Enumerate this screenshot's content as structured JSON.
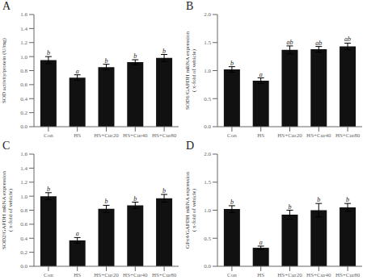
{
  "chart_data": [
    {
      "type": "bar",
      "title": "A",
      "ylabel": "SOD activity/protein (U/mg)",
      "categories": [
        "Con",
        "HS",
        "HS+Cur20",
        "HS+Cur40",
        "HS+Cur80"
      ],
      "values": [
        0.95,
        0.7,
        0.85,
        0.92,
        0.98
      ],
      "errors": [
        0.05,
        0.04,
        0.04,
        0.035,
        0.05
      ],
      "annotations": [
        "b",
        "a",
        "b",
        "b",
        "b"
      ],
      "color": "#111111",
      "ylim": [
        0.0,
        1.6
      ],
      "yticks": [
        {
          "value": 0.0,
          "label": "0.0"
        },
        0.2,
        0.4,
        0.6,
        0.8,
        {
          "value": 1.0,
          "label": "1.0"
        },
        1.2,
        1.4,
        1.6
      ],
      "grid": false
    },
    {
      "type": "bar",
      "title": "B",
      "ylabel": "SOD1/GAPDH mRNA expression\n( x-fold of vehicle)",
      "categories": [
        "Con",
        "HS",
        "HS+Cur20",
        "HS+Cur40",
        "HS+Cur80"
      ],
      "values": [
        1.02,
        0.82,
        1.37,
        1.38,
        1.43
      ],
      "errors": [
        0.05,
        0.05,
        0.07,
        0.05,
        0.06
      ],
      "annotations": [
        "b",
        "a",
        "ab",
        "ab",
        "ab"
      ],
      "color": "#111111",
      "ylim": [
        0.0,
        2.0
      ],
      "yticks": [
        {
          "value": 0.0,
          "label": "0.0"
        },
        0.5,
        {
          "value": 1.0,
          "label": "1.0"
        },
        1.5,
        {
          "value": 2.0,
          "label": "2.0"
        }
      ],
      "grid": false
    },
    {
      "type": "bar",
      "title": "C",
      "ylabel": "SOD2/GAPDH mRNA expression\n( x-fold of vehicle)",
      "categories": [
        "Con",
        "HS",
        "HS+Cur20",
        "HS+Cur40",
        "HS+Cur80"
      ],
      "values": [
        1.0,
        0.37,
        0.82,
        0.87,
        0.97
      ],
      "errors": [
        0.05,
        0.04,
        0.05,
        0.045,
        0.055
      ],
      "annotations": [
        "b",
        "a",
        "b",
        "b",
        "b"
      ],
      "color": "#111111",
      "ylim": [
        0.0,
        1.6
      ],
      "yticks": [
        {
          "value": 0.0,
          "label": "0.0"
        },
        0.2,
        0.4,
        0.6,
        0.8,
        {
          "value": 1.0,
          "label": "1.0"
        },
        1.2,
        1.4,
        1.6
      ],
      "grid": false
    },
    {
      "type": "bar",
      "title": "D",
      "ylabel": "GPx4/GAPDH mRNA expression\n( x-fold of vehicle)",
      "categories": [
        "Con",
        "HS",
        "HS+Cur20",
        "HS+Cur40",
        "HS+Cur80"
      ],
      "values": [
        1.02,
        0.33,
        0.92,
        1.0,
        1.05
      ],
      "errors": [
        0.06,
        0.03,
        0.08,
        0.12,
        0.07
      ],
      "annotations": [
        "b",
        "a",
        "b",
        "b",
        "b"
      ],
      "color": "#111111",
      "ylim": [
        0.0,
        2.0
      ],
      "yticks": [
        {
          "value": 0.0,
          "label": "0.0"
        },
        0.5,
        {
          "value": 1.0,
          "label": "1.0"
        },
        1.5,
        {
          "value": 2.0,
          "label": "2.0"
        }
      ],
      "grid": false
    }
  ]
}
